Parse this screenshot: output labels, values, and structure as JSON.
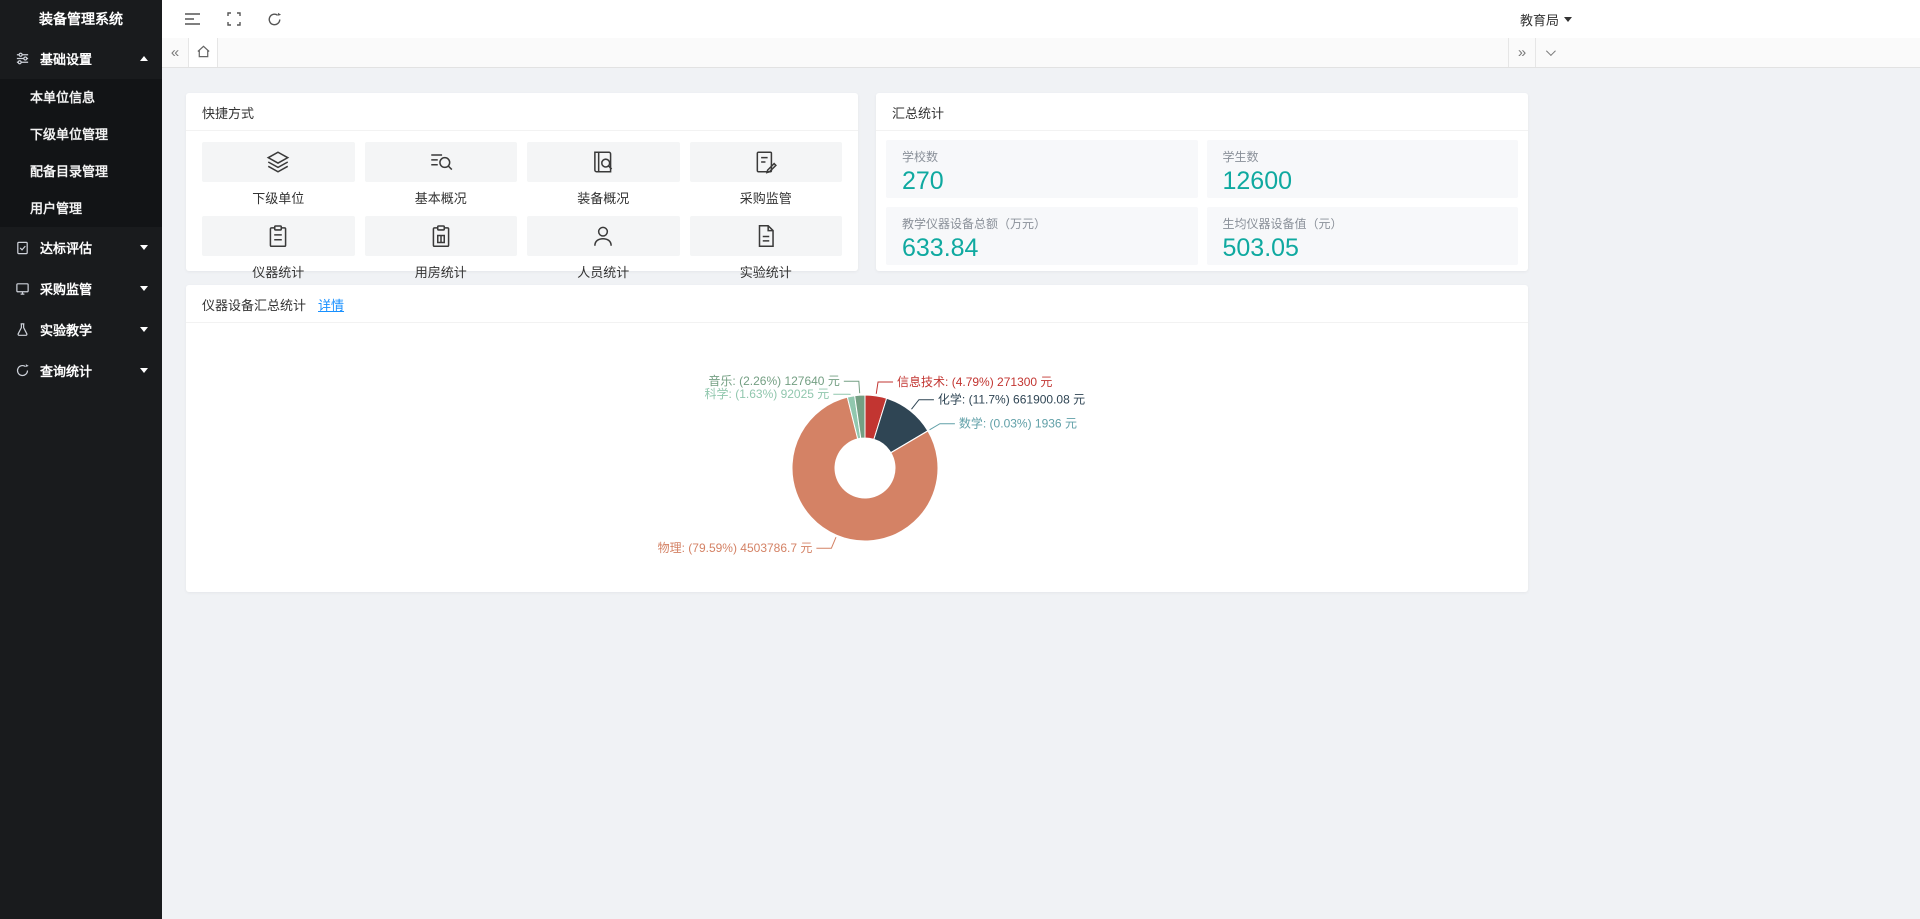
{
  "app": {
    "title": "装备管理系统"
  },
  "header": {
    "user_menu": "教育局"
  },
  "sidebar": {
    "sections": [
      {
        "label": "基础设置",
        "icon": "sliders-icon",
        "expanded": true,
        "children": [
          "本单位信息",
          "下级单位管理",
          "配备目录管理",
          "用户管理"
        ]
      },
      {
        "label": "达标评估",
        "icon": "clipboard-check-icon",
        "expanded": false
      },
      {
        "label": "采购监管",
        "icon": "monitor-icon",
        "expanded": false
      },
      {
        "label": "实验教学",
        "icon": "flask-icon",
        "expanded": false
      },
      {
        "label": "查询统计",
        "icon": "query-stats-icon",
        "expanded": false
      }
    ]
  },
  "quick": {
    "title": "快捷方式",
    "items": [
      {
        "label": "下级单位",
        "icon": "layers-icon"
      },
      {
        "label": "基本概况",
        "icon": "overview-search-icon"
      },
      {
        "label": "装备概况",
        "icon": "book-search-icon"
      },
      {
        "label": "采购监管",
        "icon": "document-edit-icon"
      },
      {
        "label": "仪器统计",
        "icon": "clipboard-icon"
      },
      {
        "label": "用房统计",
        "icon": "room-clipboard-icon"
      },
      {
        "label": "人员统计",
        "icon": "person-icon"
      },
      {
        "label": "实验统计",
        "icon": "report-icon"
      }
    ]
  },
  "summary": {
    "title": "汇总统计",
    "stats": [
      {
        "label": "学校数",
        "value": "270"
      },
      {
        "label": "学生数",
        "value": "12600"
      },
      {
        "label": "教学仪器设备总额（万元）",
        "value": "633.84"
      },
      {
        "label": "生均仪器设备值（元）",
        "value": "503.05"
      }
    ],
    "value_color": "#0fa9a0"
  },
  "chart_card": {
    "title": "仪器设备汇总统计",
    "link": "详情"
  },
  "chart_data": {
    "type": "pie",
    "title": "仪器设备汇总统计",
    "donut": true,
    "unit": "元",
    "legend": "none",
    "start_angle": "top",
    "direction": "clockwise",
    "label_format": "{name}: ({percent}%) {value} 元",
    "series": [
      {
        "name": "信息技术",
        "percent": 4.79,
        "value": 271300,
        "color": "#c23531"
      },
      {
        "name": "化学",
        "percent": 11.7,
        "value": 661900.08,
        "color": "#2f4554"
      },
      {
        "name": "数学",
        "percent": 0.03,
        "value": 1936,
        "color": "#61a0a8"
      },
      {
        "name": "物理",
        "percent": 79.59,
        "value": 4503786.7,
        "color": "#d48265"
      },
      {
        "name": "科学",
        "percent": 1.63,
        "value": 92025,
        "color": "#91c7ae"
      },
      {
        "name": "音乐",
        "percent": 2.26,
        "value": 127640,
        "color": "#749f83"
      }
    ]
  }
}
